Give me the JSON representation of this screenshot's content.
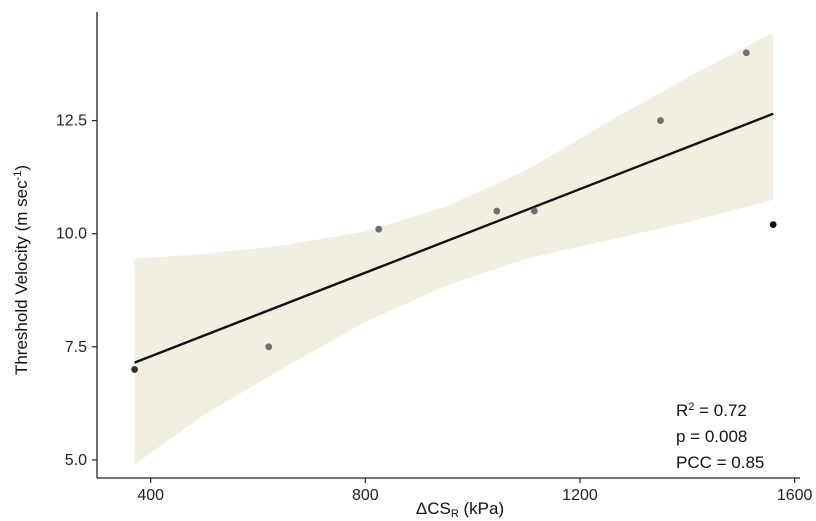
{
  "chart_data": {
    "type": "scatter",
    "xlabel": {
      "prefix": "ΔCS",
      "sub": "R",
      "suffix": " (kPa)"
    },
    "ylabel": {
      "main": "Threshold Velocity (m sec",
      "sup": "-1",
      "end": ")"
    },
    "xlim": [
      300,
      1610
    ],
    "ylim": [
      4.6,
      14.9
    ],
    "x_ticks": [
      400,
      800,
      1200,
      1600
    ],
    "y_ticks": [
      5.0,
      7.5,
      10.0,
      12.5
    ],
    "y_tick_labels": [
      "5.0",
      "7.5",
      "10.0",
      "12.5"
    ],
    "grid": false,
    "points": [
      {
        "x": 370,
        "y": 7.0,
        "color": "#333333"
      },
      {
        "x": 620,
        "y": 7.5,
        "color": "#707070"
      },
      {
        "x": 825,
        "y": 10.1,
        "color": "#707070"
      },
      {
        "x": 1045,
        "y": 10.5,
        "color": "#707070"
      },
      {
        "x": 1115,
        "y": 10.5,
        "color": "#707070"
      },
      {
        "x": 1350,
        "y": 12.5,
        "color": "#707070"
      },
      {
        "x": 1510,
        "y": 14.0,
        "color": "#707070"
      },
      {
        "x": 1560,
        "y": 10.2,
        "color": "#111111"
      }
    ],
    "fit_line": {
      "x": [
        370,
        1560
      ],
      "y": [
        7.15,
        12.65
      ]
    },
    "confidence_band": {
      "x": [
        370,
        500,
        650,
        800,
        950,
        1100,
        1250,
        1400,
        1560
      ],
      "lower": [
        4.9,
        6.0,
        7.05,
        8.05,
        8.85,
        9.45,
        9.85,
        10.25,
        10.75
      ],
      "upper": [
        9.45,
        9.55,
        9.75,
        10.05,
        10.6,
        11.4,
        12.45,
        13.45,
        14.45
      ]
    },
    "annotations": [
      {
        "main": "R",
        "sup": "2",
        "rest": " = 0.72"
      },
      {
        "main": "p = 0.008",
        "sup": "",
        "rest": ""
      },
      {
        "main": "PCC = 0.85",
        "sup": "",
        "rest": ""
      }
    ],
    "colors": {
      "band": "#f2efe1",
      "line": "#111111",
      "axis": "#222222"
    }
  }
}
